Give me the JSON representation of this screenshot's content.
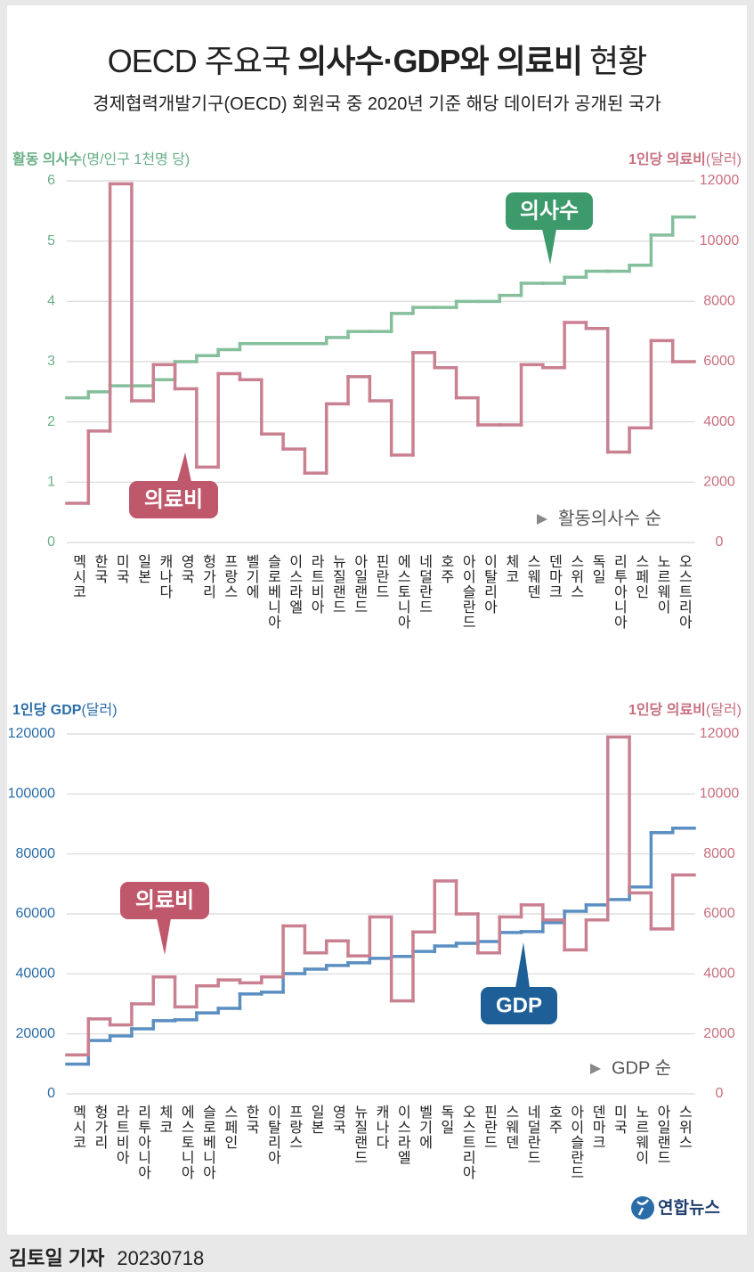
{
  "title": [
    "OECD 주요국",
    "의사수·GDP와 의료비",
    "현황"
  ],
  "subtitle": "경제협력개발기구(OECD) 회원국 중 2020년 기준 해당 데이터가 공개된 국가",
  "chart_data": [
    {
      "type": "step",
      "ylabel": "활동 의사수",
      "ylabel_unit": "(명/인구 1천명 당)",
      "ylabel_color": "#6aaf86",
      "y2label": "1인당 의료비",
      "y2label_unit": "(달러)",
      "y2label_color": "#c7707f",
      "sort_note": "활동의사수 순",
      "categories": [
        "멕시코",
        "한국",
        "미국",
        "일본",
        "캐나다",
        "영국",
        "헝가리",
        "프랑스",
        "벨기에",
        "슬로베니아",
        "이스라엘",
        "라트비아",
        "뉴질랜드",
        "아일랜드",
        "핀란드",
        "에스토니아",
        "네덜란드",
        "호주",
        "아이슬란드",
        "이탈리아",
        "체코",
        "스웨덴",
        "덴마크",
        "스위스",
        "독일",
        "리투아니아",
        "스페인",
        "노르웨이",
        "오스트리아"
      ],
      "series": [
        {
          "name": "의사수",
          "color": "#86bf9c",
          "tag_color": "#3d9a6b",
          "values": [
            2.4,
            2.5,
            2.6,
            2.6,
            2.7,
            3.0,
            3.1,
            3.2,
            3.3,
            3.3,
            3.3,
            3.3,
            3.4,
            3.5,
            3.5,
            3.8,
            3.9,
            3.9,
            4.0,
            4.0,
            4.1,
            4.3,
            4.3,
            4.4,
            4.5,
            4.5,
            4.6,
            5.1,
            5.4
          ]
        },
        {
          "name": "의료비",
          "color": "#c98090",
          "tag_color": "#c0586c",
          "axis": "y2",
          "values": [
            1300,
            3700,
            11900,
            4700,
            5900,
            5100,
            2500,
            5600,
            5400,
            3600,
            3100,
            2300,
            4600,
            5500,
            4700,
            2900,
            6300,
            5800,
            4800,
            3900,
            3900,
            5900,
            5800,
            7300,
            7100,
            3000,
            3800,
            6700,
            6000
          ]
        }
      ],
      "ylim": [
        0,
        6
      ],
      "yticks": [
        0,
        1,
        2,
        3,
        4,
        5,
        6
      ],
      "y2lim": [
        0,
        12000
      ],
      "y2ticks": [
        0,
        2000,
        4000,
        6000,
        8000,
        10000,
        12000
      ],
      "grid": true
    },
    {
      "type": "step",
      "ylabel": "1인당 GDP",
      "ylabel_unit": "(달러)",
      "ylabel_color": "#2a6ca8",
      "y2label": "1인당 의료비",
      "y2label_unit": "(달러)",
      "y2label_color": "#c7707f",
      "sort_note": "GDP 순",
      "categories": [
        "멕시코",
        "헝가리",
        "라트비아",
        "리투아니아",
        "체코",
        "에스토니아",
        "슬로베니아",
        "스페인",
        "한국",
        "이탈리아",
        "프랑스",
        "일본",
        "영국",
        "뉴질랜드",
        "캐나다",
        "이스라엘",
        "벨기에",
        "독일",
        "오스트리아",
        "핀란드",
        "스웨덴",
        "네덜란드",
        "호주",
        "아이슬란드",
        "덴마크",
        "미국",
        "노르웨이",
        "아일랜드",
        "스위스"
      ],
      "series": [
        {
          "name": "GDP",
          "color": "#5b8fc2",
          "tag_color": "#1d5f96",
          "values": [
            9900,
            17800,
            19300,
            21700,
            24400,
            24700,
            27000,
            28500,
            33300,
            33900,
            40100,
            41600,
            42800,
            43700,
            45200,
            45800,
            47500,
            49300,
            50200,
            50800,
            53800,
            54100,
            57100,
            60900,
            63000,
            64800,
            69000,
            87100,
            88600
          ]
        },
        {
          "name": "의료비",
          "color": "#c98090",
          "tag_color": "#c0586c",
          "axis": "y2",
          "values": [
            1300,
            2500,
            2300,
            3000,
            3900,
            2900,
            3600,
            3800,
            3700,
            3900,
            5600,
            4700,
            5100,
            4600,
            5900,
            3100,
            5400,
            7100,
            6000,
            4700,
            5900,
            6300,
            5800,
            4800,
            5800,
            11900,
            6700,
            5500,
            7300
          ]
        }
      ],
      "ylim": [
        0,
        120000
      ],
      "yticks": [
        0,
        20000,
        40000,
        60000,
        80000,
        100000,
        120000
      ],
      "y2lim": [
        0,
        12000
      ],
      "y2ticks": [
        0,
        2000,
        4000,
        6000,
        8000,
        10000,
        12000
      ],
      "grid": true
    }
  ],
  "logo": "연합뉴스",
  "byline": "김토일 기자",
  "date": "20230718"
}
